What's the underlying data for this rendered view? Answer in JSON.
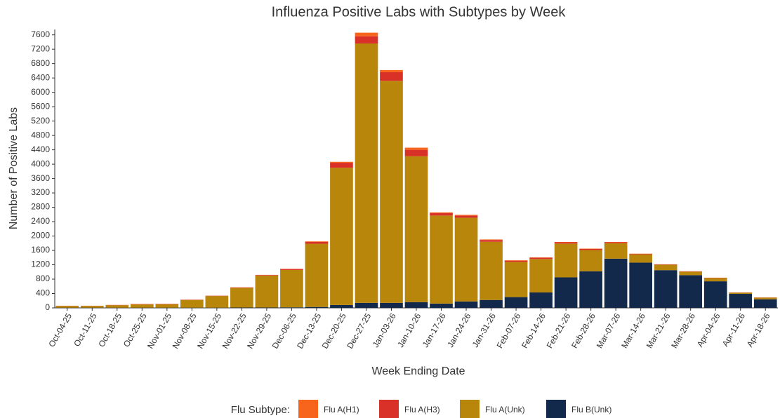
{
  "chart_data": {
    "type": "stacked_bar",
    "title": "Influenza Positive Labs with Subtypes by Week",
    "x_label": "Week Ending Date",
    "y_label": "Number of Positive Labs",
    "legend_title": "Flu Subtype:",
    "legend_position": "bottom",
    "categories": [
      "Oct-04-25",
      "Oct-11-25",
      "Oct-18-25",
      "Oct-25-25",
      "Nov-01-25",
      "Nov-08-25",
      "Nov-15-25",
      "Nov-22-25",
      "Nov-29-25",
      "Dec-06-25",
      "Dec-13-25",
      "Dec-20-25",
      "Dec-27-25",
      "Jan-03-26",
      "Jan-10-26",
      "Jan-17-26",
      "Jan-24-26",
      "Jan-31-26",
      "Feb-07-26",
      "Feb-14-26",
      "Feb-21-26",
      "Feb-28-26",
      "Mar-07-26",
      "Mar-14-26",
      "Mar-21-26",
      "Mar-28-26",
      "Apr-04-26",
      "Apr-11-26",
      "Apr-18-26"
    ],
    "series": [
      {
        "name": "Flu A(H1)",
        "color": "#f7641c",
        "values": [
          2,
          2,
          3,
          5,
          5,
          3,
          3,
          5,
          5,
          10,
          15,
          25,
          100,
          60,
          60,
          20,
          20,
          15,
          10,
          10,
          10,
          10,
          10,
          5,
          3,
          3,
          3,
          2,
          2
        ]
      },
      {
        "name": "Flu A(H3)",
        "color": "#d93127",
        "values": [
          3,
          3,
          5,
          10,
          8,
          8,
          8,
          12,
          15,
          25,
          50,
          140,
          200,
          240,
          180,
          70,
          60,
          50,
          35,
          35,
          35,
          30,
          25,
          15,
          10,
          8,
          8,
          5,
          5
        ]
      },
      {
        "name": "Flu A(Unk)",
        "color": "#b8860b",
        "values": [
          50,
          50,
          70,
          90,
          95,
          215,
          325,
          545,
          890,
          1040,
          1760,
          3820,
          7220,
          6180,
          4060,
          2450,
          2330,
          1620,
          980,
          930,
          940,
          590,
          430,
          230,
          150,
          100,
          90,
          35,
          45
        ]
      },
      {
        "name": "Flu B(Unk)",
        "color": "#13294b",
        "values": [
          5,
          5,
          5,
          5,
          5,
          5,
          5,
          10,
          10,
          15,
          25,
          80,
          140,
          140,
          160,
          120,
          180,
          220,
          300,
          430,
          850,
          1020,
          1370,
          1260,
          1050,
          910,
          740,
          390,
          240
        ]
      }
    ],
    "ylim": [
      0,
      7750
    ],
    "yticks": [
      0,
      400,
      800,
      1200,
      1600,
      2000,
      2400,
      2800,
      3200,
      3600,
      4000,
      4400,
      4800,
      5200,
      5600,
      6000,
      6400,
      6800,
      7200,
      7600
    ]
  }
}
